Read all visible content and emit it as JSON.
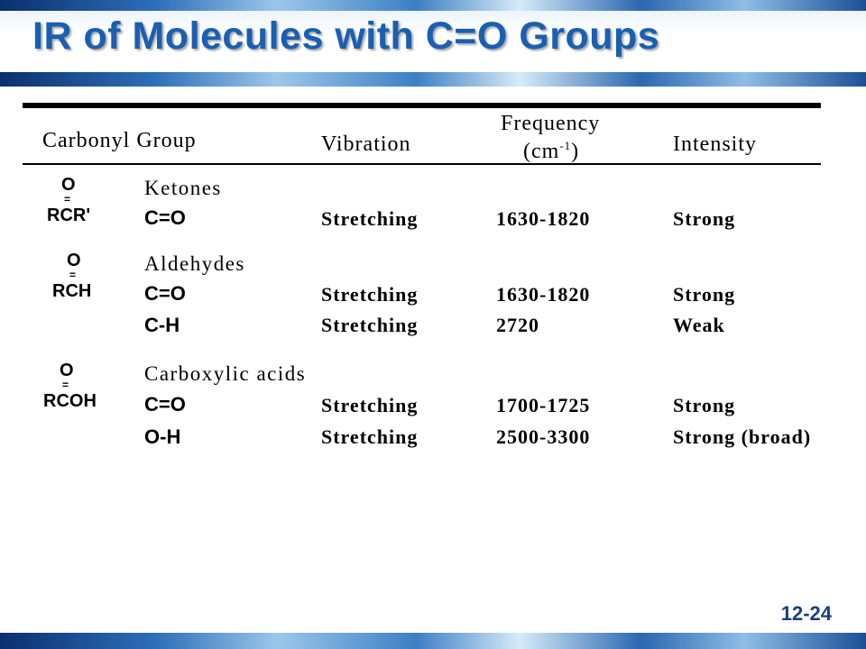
{
  "slide": {
    "title": "IR of Molecules with C=O Groups",
    "number": "12-24"
  },
  "table": {
    "headers": {
      "group": "Carbonyl Group",
      "vibration": "Vibration",
      "frequency_line1": "Frequency",
      "frequency_line2_open": "(cm",
      "frequency_sup": "-1",
      "frequency_line2_close": ")",
      "intensity": "Intensity"
    },
    "sections": [
      {
        "structure": {
          "top": "O",
          "formula": "RCR'"
        },
        "name": "Ketones",
        "rows": [
          {
            "bond": "C=O",
            "vibration": "Stretching",
            "frequency": "1630-1820",
            "intensity": "Strong"
          }
        ]
      },
      {
        "structure": {
          "top": "O",
          "formula": "RCH"
        },
        "name": "Aldehydes",
        "rows": [
          {
            "bond": "C=O",
            "vibration": "Stretching",
            "frequency": "1630-1820",
            "intensity": "Strong"
          },
          {
            "bond": "C-H",
            "vibration": "Stretching",
            "frequency": "2720",
            "intensity": "Weak"
          }
        ]
      },
      {
        "structure": {
          "top": "O",
          "formula": "RCOH"
        },
        "name": "Carboxylic acids",
        "rows": [
          {
            "bond": "C=O",
            "vibration": "Stretching",
            "frequency": "1700-1725",
            "intensity": "Strong"
          },
          {
            "bond": "O-H",
            "vibration": "Stretching",
            "frequency": "2500-3300",
            "intensity": "Strong (broad)"
          }
        ]
      }
    ]
  }
}
